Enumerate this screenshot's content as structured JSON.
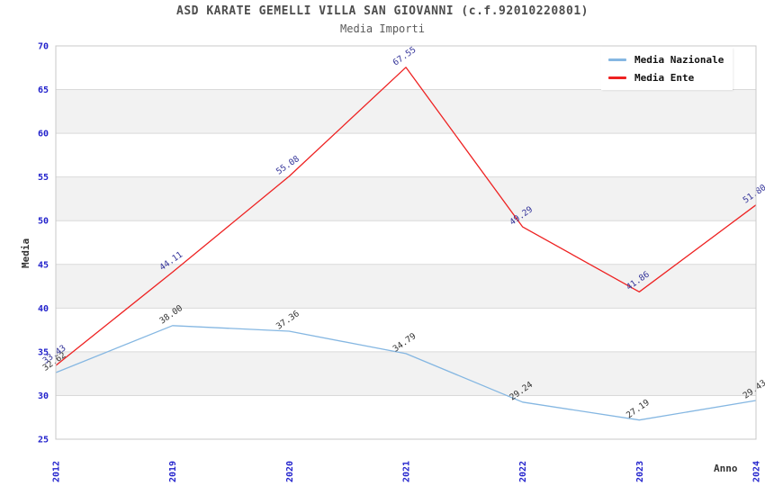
{
  "header": {
    "title": "ASD KARATE GEMELLI VILLA SAN GIOVANNI (c.f.92010220801)",
    "subtitle": "Media Importi"
  },
  "axes": {
    "y_title": "Media",
    "x_title": "Anno"
  },
  "legend": {
    "items": [
      {
        "label": "Media Nazionale"
      },
      {
        "label": "Media Ente"
      }
    ]
  },
  "chart_data": {
    "type": "line",
    "title": "ASD KARATE GEMELLI VILLA SAN GIOVANNI (c.f.92010220801)",
    "subtitle": "Media Importi",
    "xlabel": "Anno",
    "ylabel": "Media",
    "categories": [
      "2012",
      "2019",
      "2020",
      "2021",
      "2022",
      "2023",
      "2024"
    ],
    "series": [
      {
        "name": "Media Nazionale",
        "color": "#85b7e2",
        "label_color": "#333333",
        "values": [
          32.62,
          38.0,
          37.36,
          34.79,
          29.24,
          27.19,
          29.43
        ]
      },
      {
        "name": "Media Ente",
        "color": "#ee2222",
        "label_color": "#333399",
        "values": [
          33.43,
          44.11,
          55.08,
          67.55,
          49.29,
          41.86,
          51.8
        ]
      }
    ],
    "ylim": [
      25,
      70
    ],
    "ytick_step": 5,
    "grid": true,
    "alternating_bands": true,
    "legend_position": "top-right",
    "colors": {
      "tick_label": "#2222cc",
      "band_fill": "#f2f2f2",
      "gridline": "#d9d9d9",
      "plot_border": "#c9c9c9",
      "background": "#ffffff"
    }
  }
}
